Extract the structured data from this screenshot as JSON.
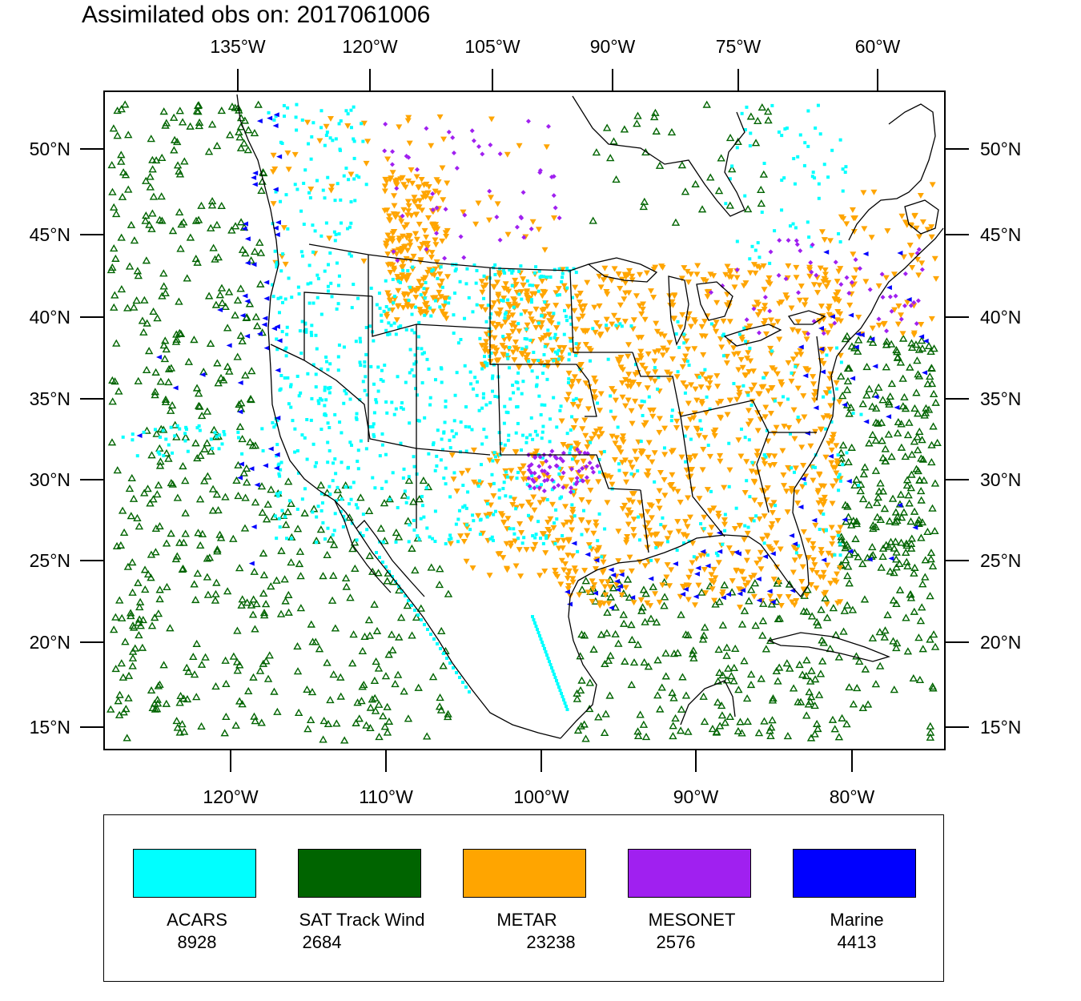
{
  "title": "Assimilated obs on: 2017061006",
  "map": {
    "top_lon_labels": [
      "135°W",
      "120°W",
      "105°W",
      "90°W",
      "75°W",
      "60°W"
    ],
    "bottom_lon_labels": [
      "120°W",
      "110°W",
      "100°W",
      "90°W",
      "80°W"
    ],
    "left_lat_labels": [
      "50°N",
      "45°N",
      "40°N",
      "35°N",
      "30°N",
      "25°N",
      "20°N",
      "15°N"
    ],
    "right_lat_labels": [
      "50°N",
      "45°N",
      "40°N",
      "35°N",
      "30°N",
      "25°N",
      "20°N",
      "15°N"
    ],
    "coastline_color": "#000000",
    "map_background": "#ffffff"
  },
  "legend": {
    "items": [
      {
        "label": "ACARS",
        "count": "8928",
        "color": "#00ffff",
        "marker": "small-square"
      },
      {
        "label": "SAT Track Wind",
        "count": "2684",
        "color": "#006400",
        "marker": "hollow-triangle"
      },
      {
        "label": "METAR",
        "count": "23238",
        "color": "#ffa500",
        "marker": "down-triangle"
      },
      {
        "label": "MESONET",
        "count": "2576",
        "color": "#a020f0",
        "marker": "diamond"
      },
      {
        "label": "Marine",
        "count": "4413",
        "color": "#0000ff",
        "marker": "left-triangle"
      }
    ]
  }
}
